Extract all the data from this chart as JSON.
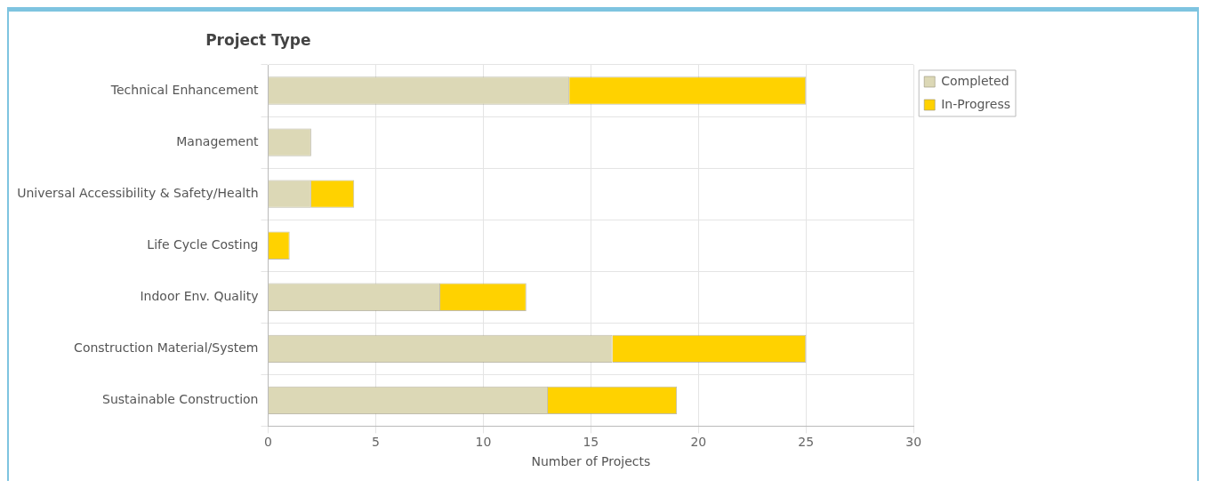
{
  "chart_data": {
    "type": "bar",
    "orientation": "horizontal",
    "stacked": true,
    "title": "Project Type",
    "xlabel": "Number of Projects",
    "categories": [
      "Technical Enhancement",
      "Management",
      "Universal Accessibility & Safety/Health",
      "Life Cycle Costing",
      "Indoor Env. Quality",
      "Construction Material/System",
      "Sustainable Construction"
    ],
    "series": [
      {
        "name": "Completed",
        "color": "#dcd8b6",
        "values": [
          14,
          2,
          2,
          0,
          8,
          16,
          13
        ]
      },
      {
        "name": "In-Progress",
        "color": "#ffd200",
        "values": [
          11,
          0,
          2,
          1,
          4,
          9,
          6
        ]
      }
    ],
    "xlim": [
      0,
      30
    ],
    "xticks": [
      0,
      5,
      10,
      15,
      20,
      25,
      30
    ],
    "grid": true,
    "legend": "right"
  }
}
